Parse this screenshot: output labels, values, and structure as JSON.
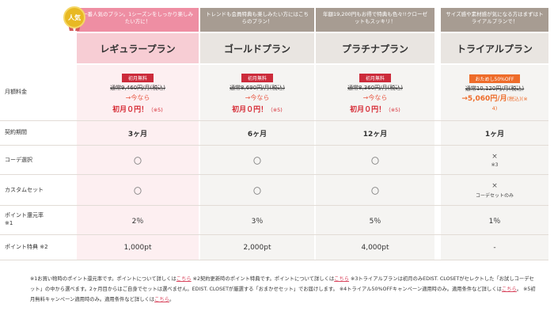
{
  "badge": "人気",
  "descriptions": {
    "regular": "一番人気のプラン。1シーズンをしっかり楽しみたい方に！",
    "gold": "トレンドも会員特典も楽しみたい方にはこちらのプラン！",
    "platinum": "年額19,200円もお得で特典も色々!!クローゼットもスッキリ！",
    "trial": "サイズ感や素材感が気になる方はまずはトライアルプランで！"
  },
  "plans": {
    "regular": "レギュラープラン",
    "gold": "ゴールドプラン",
    "platinum": "プラチナプラン",
    "trial": "トライアルプラン"
  },
  "row_labels": {
    "monthly": "月額料金",
    "period": "契約期間",
    "coordinate": "コーデ選択",
    "custom_set": "カスタムセット",
    "point_rate": "ポイント還元率",
    "point_rate_note": "※1",
    "point_bonus": "ポイント特典 ※2"
  },
  "monthly": {
    "regular": {
      "tag": "初月無料",
      "normal": "通常9,460円/月(税込)",
      "now": "→今なら",
      "free": "初月０円！",
      "note": "（※5)"
    },
    "gold": {
      "tag": "初月無料",
      "normal": "通常8,690円/月(税込)",
      "now": "→今なら",
      "free": "初月０円！",
      "note": "（※5)"
    },
    "platinum": {
      "tag": "初月無料",
      "normal": "通常8,360円/月(税込)",
      "now": "→今なら",
      "free": "初月０円！",
      "note": "（※5)"
    },
    "trial": {
      "tag": "おためし50%OFF",
      "normal": "通常10,120円/月(税込)",
      "price": "→5,060円/月",
      "tax": "(税込)(※",
      "note2": "4)"
    }
  },
  "period": {
    "regular": "3ヶ月",
    "gold": "6ヶ月",
    "platinum": "12ヶ月",
    "trial": "1ヶ月"
  },
  "coordinate": {
    "regular": "〇",
    "gold": "〇",
    "platinum": "〇",
    "trial": "×",
    "trial_note": "※3"
  },
  "custom_set": {
    "regular": "〇",
    "gold": "〇",
    "platinum": "〇",
    "trial": "×",
    "trial_note": "コーデセットのみ"
  },
  "point_rate": {
    "regular": "2％",
    "gold": "3％",
    "platinum": "5％",
    "trial": "1％"
  },
  "point_bonus": {
    "regular": "1,000pt",
    "gold": "2,000pt",
    "platinum": "4,000pt",
    "trial": "-"
  },
  "footnote": {
    "p1": "※1お買い物時のポイント還元率です。ポイントについて詳しくは",
    "link1": "こちら",
    "p2": " ※2契約更新時のポイント特典です。ポイントについて詳しくは",
    "link2": "こちら",
    "p3": " ※3トライアルプランは初月のみEDIST. CLOSETがセレクトした「お試しコーデセット」の中から選べます。2ヶ月目からはご自身でセットは選べません。EDIST. CLOSETが厳選する「おまかせセット」でお届けします。 ※4トライアル50%OFFキャンペーン適用時のみ。適用条件など詳しくは",
    "link3": "こちら",
    "p4": "。 ※5初月無料キャンペーン適用時のみ。適用条件など詳しくは",
    "link4": "こちら",
    "p5": "。"
  }
}
